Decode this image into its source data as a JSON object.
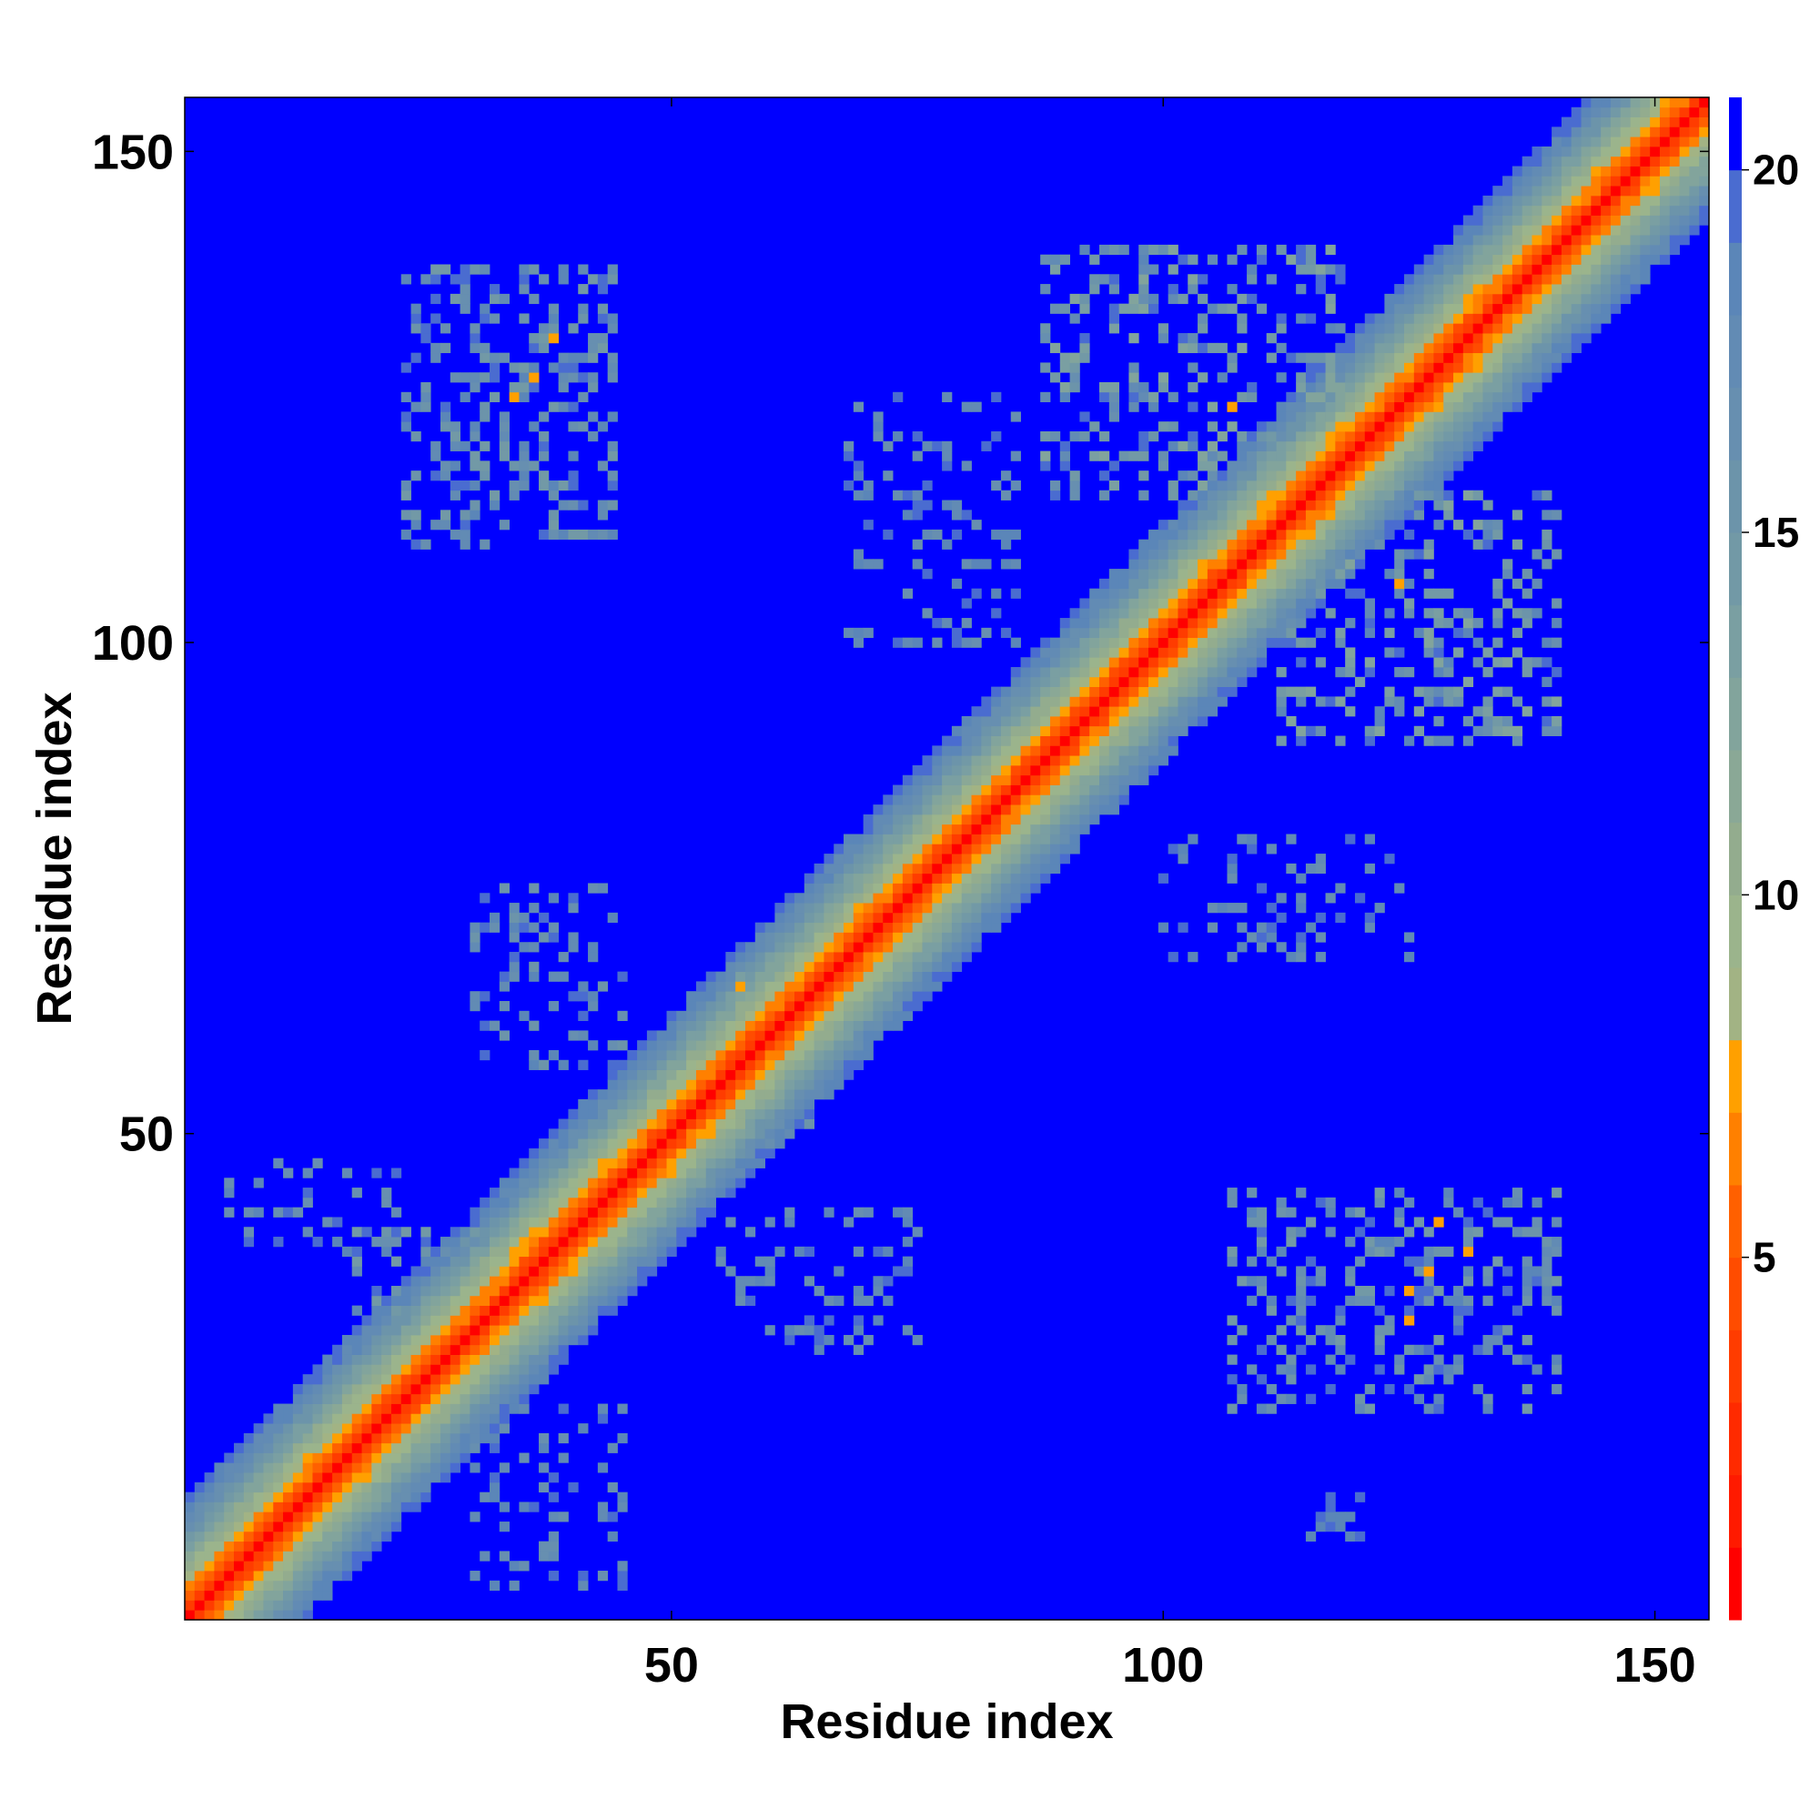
{
  "chart_data": {
    "type": "heatmap",
    "title": "",
    "xlabel": "Residue index",
    "ylabel": "Residue index",
    "n_residues": 155,
    "xlim": [
      1,
      155
    ],
    "ylim": [
      1,
      155
    ],
    "x_ticks": [
      50,
      100,
      150
    ],
    "y_ticks": [
      50,
      100,
      150
    ],
    "x_tick_labels": [
      "50",
      "100",
      "150"
    ],
    "y_tick_labels": [
      "50",
      "100",
      "150"
    ],
    "colorbar": {
      "range": [
        0,
        21
      ],
      "ticks": [
        5,
        10,
        15,
        20
      ],
      "tick_labels": [
        "5",
        "10",
        "15",
        "20"
      ],
      "levels": [
        {
          "min": 0,
          "max": 1,
          "color": "#ff0000"
        },
        {
          "min": 1,
          "max": 2,
          "color": "#ff1a00"
        },
        {
          "min": 2,
          "max": 3,
          "color": "#ff2a00"
        },
        {
          "min": 3,
          "max": 4,
          "color": "#ff3c00"
        },
        {
          "min": 4,
          "max": 5,
          "color": "#ff4c00"
        },
        {
          "min": 5,
          "max": 6,
          "color": "#ff6000"
        },
        {
          "min": 6,
          "max": 7,
          "color": "#ff8000"
        },
        {
          "min": 7,
          "max": 8,
          "color": "#ffa000"
        },
        {
          "min": 8,
          "max": 9,
          "color": "#a2b384"
        },
        {
          "min": 9,
          "max": 10,
          "color": "#9bb48c"
        },
        {
          "min": 10,
          "max": 11,
          "color": "#93ac8e"
        },
        {
          "min": 11,
          "max": 12,
          "color": "#8aa896"
        },
        {
          "min": 12,
          "max": 13,
          "color": "#82a49c"
        },
        {
          "min": 13,
          "max": 14,
          "color": "#7a9fa2"
        },
        {
          "min": 14,
          "max": 15,
          "color": "#7299a6"
        },
        {
          "min": 15,
          "max": 16,
          "color": "#6c94aa"
        },
        {
          "min": 16,
          "max": 17,
          "color": "#678fb0"
        },
        {
          "min": 17,
          "max": 18,
          "color": "#628bb4"
        },
        {
          "min": 18,
          "max": 19,
          "color": "#5b86b8"
        },
        {
          "min": 19,
          "max": 20,
          "color": "#4a6cd0"
        },
        {
          "min": 20,
          "max": 21,
          "color": "#0000ff"
        }
      ]
    },
    "background_value": 21,
    "diagonal_profile": [
      {
        "offset": 0,
        "value": 0.5
      },
      {
        "offset": 1,
        "value": 3.8
      },
      {
        "offset": 2,
        "value": 5.5
      },
      {
        "offset": 3,
        "value": 7.0
      },
      {
        "offset": 4,
        "value": 8.6
      },
      {
        "offset": 5,
        "value": 10.0
      },
      {
        "offset": 6,
        "value": 11.5
      },
      {
        "offset": 7,
        "value": 13.0
      },
      {
        "offset": 8,
        "value": 14.5
      },
      {
        "offset": 9,
        "value": 16.0
      },
      {
        "offset": 10,
        "value": 17.5
      },
      {
        "offset": 11,
        "value": 18.5
      },
      {
        "offset": 12,
        "value": 19.5
      },
      {
        "offset": 13,
        "value": 21
      }
    ],
    "contact_regions": [
      {
        "x_range": [
          23,
          44
        ],
        "y_range": [
          110,
          138
        ],
        "density": 0.3,
        "value_range": [
          14,
          20
        ],
        "hot_spots": [
          [
            34,
            125
          ],
          [
            36,
            127
          ],
          [
            38,
            131
          ]
        ]
      },
      {
        "x_range": [
          68,
          85
        ],
        "y_range": [
          100,
          125
        ],
        "density": 0.2,
        "value_range": [
          16,
          20
        ],
        "hot_spots": []
      },
      {
        "x_range": [
          88,
          118
        ],
        "y_range": [
          115,
          140
        ],
        "density": 0.3,
        "value_range": [
          12,
          20
        ],
        "hot_spots": [
          [
            107,
            124
          ]
        ]
      },
      {
        "x_range": [
          112,
          140
        ],
        "y_range": [
          90,
          115
        ],
        "density": 0.3,
        "value_range": [
          12,
          20
        ],
        "hot_spots": [
          [
            124,
            106
          ]
        ]
      },
      {
        "x_range": [
          30,
          45
        ],
        "y_range": [
          57,
          75
        ],
        "density": 0.25,
        "value_range": [
          15,
          20
        ],
        "hot_spots": []
      },
      {
        "x_range": [
          55,
          65
        ],
        "y_range": [
          48,
          68
        ],
        "density": 0.25,
        "value_range": [
          13,
          20
        ],
        "hot_spots": [
          [
            57,
            65
          ]
        ]
      },
      {
        "x_range": [
          100,
          125
        ],
        "y_range": [
          68,
          80
        ],
        "density": 0.2,
        "value_range": [
          16,
          20
        ],
        "hot_spots": []
      },
      {
        "x_range": [
          5,
          22
        ],
        "y_range": [
          38,
          47
        ],
        "density": 0.2,
        "value_range": [
          16,
          20
        ],
        "hot_spots": []
      },
      {
        "x_range": [
          18,
          32
        ],
        "y_range": [
          26,
          40
        ],
        "density": 0.3,
        "value_range": [
          14,
          20
        ],
        "hot_spots": []
      },
      {
        "x_range": [
          55,
          75
        ],
        "y_range": [
          28,
          42
        ],
        "density": 0.2,
        "value_range": [
          16,
          20
        ],
        "hot_spots": []
      },
      {
        "x_range": [
          107,
          140
        ],
        "y_range": [
          22,
          44
        ],
        "density": 0.3,
        "value_range": [
          14,
          20
        ],
        "hot_spots": [
          [
            125,
            34
          ],
          [
            127,
            36
          ],
          [
            131,
            38
          ],
          [
            125,
            31
          ],
          [
            128,
            41
          ]
        ]
      },
      {
        "x_range": [
          30,
          45
        ],
        "y_range": [
          4,
          22
        ],
        "density": 0.2,
        "value_range": [
          16,
          20
        ],
        "hot_spots": []
      },
      {
        "x_range": [
          113,
          120
        ],
        "y_range": [
          9,
          13
        ],
        "density": 0.3,
        "value_range": [
          18,
          20
        ],
        "hot_spots": []
      }
    ]
  }
}
